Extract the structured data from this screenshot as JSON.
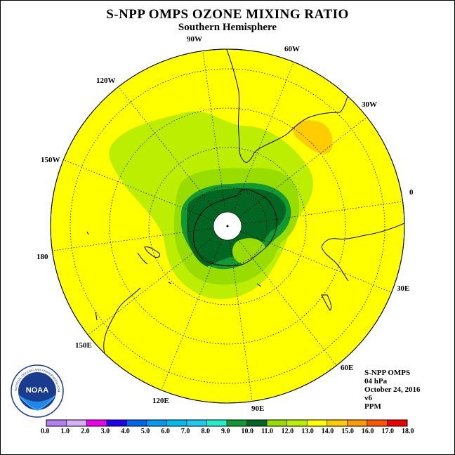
{
  "header": {
    "title": "S-NPP OMPS OZONE MIXING RATIO",
    "subtitle": "Southern Hemisphere"
  },
  "longitude_labels": [
    {
      "key": "90W",
      "text": "90W"
    },
    {
      "key": "60W",
      "text": "60W"
    },
    {
      "key": "30W",
      "text": "30W"
    },
    {
      "key": "0",
      "text": "0"
    },
    {
      "key": "30E",
      "text": "30E"
    },
    {
      "key": "60E",
      "text": "60E"
    },
    {
      "key": "90E",
      "text": "90E"
    },
    {
      "key": "120E",
      "text": "120E"
    },
    {
      "key": "150E",
      "text": "150E"
    },
    {
      "key": "180",
      "text": "180"
    },
    {
      "key": "150W",
      "text": "150W"
    },
    {
      "key": "120W",
      "text": "120W"
    }
  ],
  "info": {
    "instrument": "S-NPP OMPS",
    "level": "04 hPa",
    "date": "October 24, 2016",
    "version": "v6",
    "units": "PPM"
  },
  "logo": {
    "text": "NOAA",
    "ring_text": "NATIONAL OCEANIC AND ATMOSPHERIC ADMINISTRATION · U.S. DEPARTMENT OF COMMERCE"
  },
  "colors": {
    "background_field": "#ffff00",
    "outline": "#000000"
  },
  "colorbar": {
    "ticks": [
      "0.0",
      "1.0",
      "2.0",
      "3.0",
      "4.0",
      "5.0",
      "6.0",
      "7.0",
      "8.0",
      "9.0",
      "10.0",
      "11.0",
      "12.0",
      "13.0",
      "14.0",
      "15.0",
      "16.0",
      "17.0",
      "18.0"
    ],
    "colors": [
      "#b57ff2",
      "#d9aef8",
      "#ee00ee",
      "#2200ee",
      "#0066ee",
      "#0099ee",
      "#00bbee",
      "#1ec9f0",
      "#22eecc",
      "#119933",
      "#006622",
      "#99dd00",
      "#bbee00",
      "#ffff00",
      "#ffcc00",
      "#ff9900",
      "#ff5500",
      "#ee0000",
      "#885533"
    ]
  }
}
